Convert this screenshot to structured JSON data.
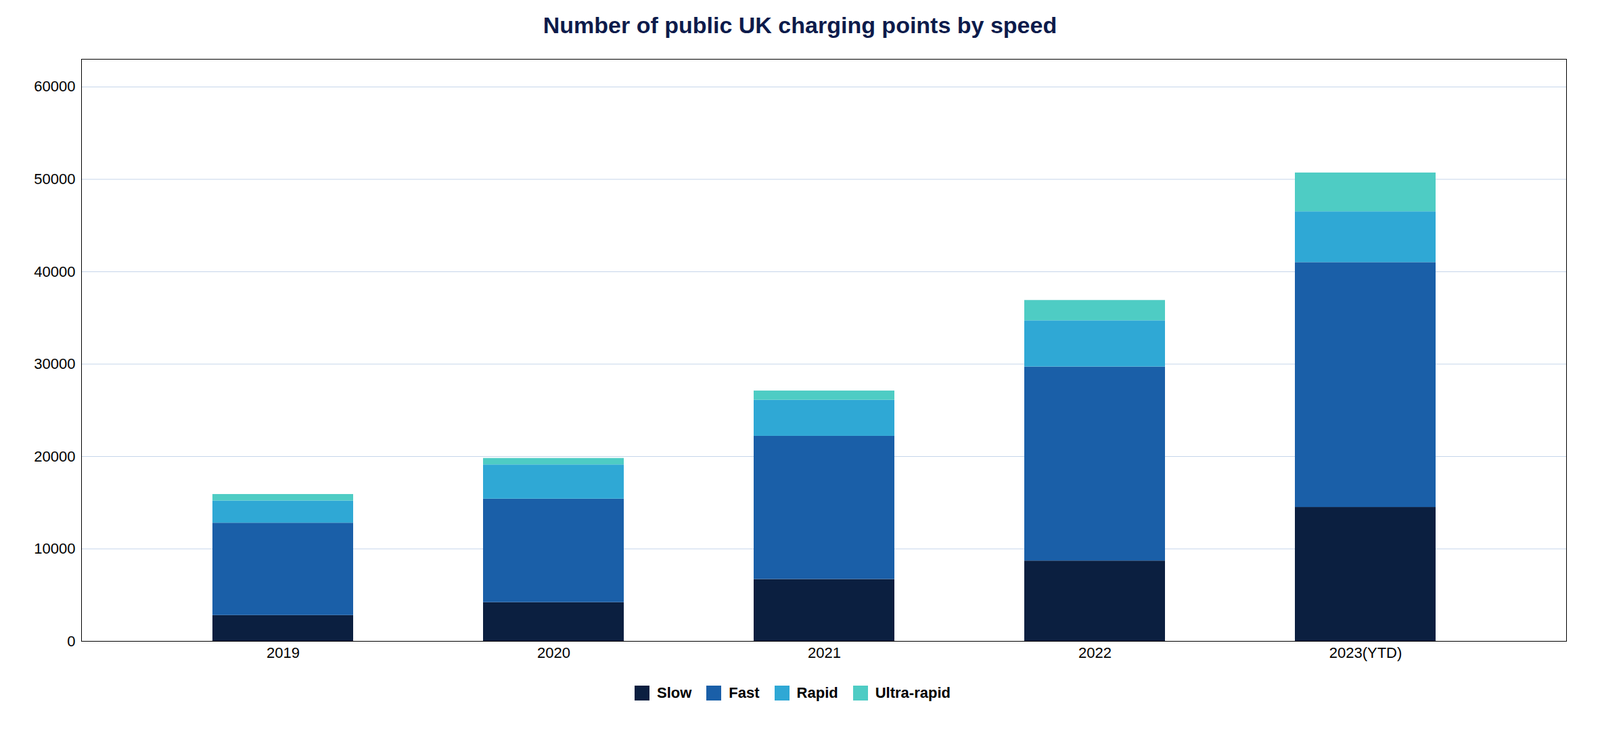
{
  "chart_data": {
    "type": "bar",
    "title": "Number of public UK charging points by speed",
    "categories": [
      "2019",
      "2020",
      "2021",
      "2022",
      "2023(YTD)"
    ],
    "series": [
      {
        "name": "Slow",
        "color": "#0b1f40",
        "values": [
          2800,
          4200,
          6700,
          8700,
          14500
        ]
      },
      {
        "name": "Fast",
        "color": "#1a5fa8",
        "values": [
          10000,
          11200,
          15500,
          21000,
          26500
        ]
      },
      {
        "name": "Rapid",
        "color": "#2fa8d5",
        "values": [
          2400,
          3700,
          3900,
          5000,
          5500
        ]
      },
      {
        "name": "Ultra-rapid",
        "color": "#4eccc4",
        "values": [
          700,
          700,
          1000,
          2200,
          4200
        ]
      }
    ],
    "stacked": true,
    "ylim": [
      0,
      63000
    ],
    "yticks": [
      0,
      10000,
      20000,
      30000,
      40000,
      50000,
      60000
    ],
    "grid": true,
    "legend": "bottom"
  }
}
